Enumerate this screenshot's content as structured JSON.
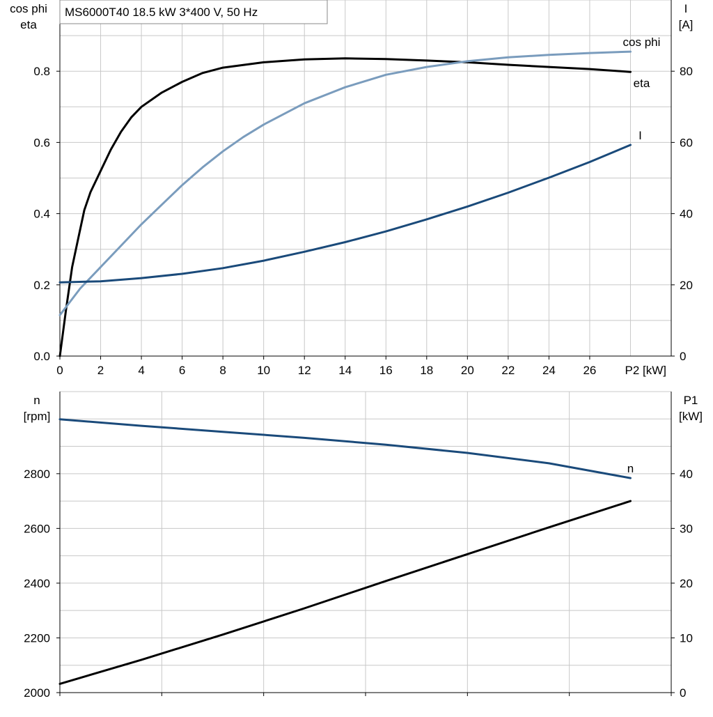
{
  "chart_data": [
    {
      "type": "line",
      "title": "MS6000T40   18.5 kW   3*400 V, 50 Hz",
      "x_axis": {
        "label": "P2 [kW]",
        "range": [
          0,
          30
        ],
        "ticks": [
          0,
          2,
          4,
          6,
          8,
          10,
          12,
          14,
          16,
          18,
          20,
          22,
          24,
          26
        ]
      },
      "y_left": {
        "label_lines": [
          "cos phi",
          "eta"
        ],
        "range": [
          0,
          1.0
        ],
        "ticks": [
          0.0,
          0.2,
          0.4,
          0.6,
          0.8
        ],
        "tick_format": 1
      },
      "y_right": {
        "label_lines": [
          "I",
          "[A]"
        ],
        "range": [
          0,
          100
        ],
        "ticks": [
          0,
          20,
          40,
          60,
          80
        ],
        "tick_format": 0
      },
      "grid": true,
      "series": [
        {
          "name": "eta",
          "axis": "left",
          "color": "#000000",
          "x": [
            0,
            0.3,
            0.6,
            0.9,
            1.2,
            1.5,
            2,
            2.5,
            3,
            3.5,
            4,
            5,
            6,
            7,
            8,
            10,
            12,
            14,
            16,
            18,
            20,
            22,
            24,
            26,
            28
          ],
          "y": [
            0.0,
            0.13,
            0.25,
            0.33,
            0.41,
            0.46,
            0.52,
            0.58,
            0.63,
            0.67,
            0.7,
            0.74,
            0.77,
            0.795,
            0.81,
            0.825,
            0.833,
            0.836,
            0.834,
            0.83,
            0.825,
            0.818,
            0.812,
            0.806,
            0.798
          ]
        },
        {
          "name": "cos phi",
          "axis": "left",
          "color": "#7a9cbd",
          "x": [
            0,
            1,
            2,
            3,
            4,
            5,
            6,
            7,
            8,
            9,
            10,
            12,
            14,
            16,
            18,
            20,
            22,
            24,
            26,
            28
          ],
          "y": [
            0.115,
            0.19,
            0.25,
            0.31,
            0.37,
            0.425,
            0.48,
            0.53,
            0.575,
            0.615,
            0.65,
            0.71,
            0.755,
            0.79,
            0.812,
            0.828,
            0.839,
            0.846,
            0.851,
            0.855
          ]
        },
        {
          "name": "I",
          "axis": "right",
          "color": "#1a4a7a",
          "x": [
            0,
            2,
            4,
            6,
            8,
            10,
            12,
            14,
            16,
            18,
            20,
            22,
            24,
            26,
            28
          ],
          "y": [
            20.7,
            21.0,
            21.9,
            23.1,
            24.7,
            26.8,
            29.3,
            32.0,
            35.0,
            38.4,
            42.0,
            45.9,
            50.1,
            54.5,
            59.3
          ]
        }
      ]
    },
    {
      "type": "line",
      "x_axis": {
        "range": [
          0,
          30
        ],
        "ticks": [
          0,
          5,
          10,
          15,
          20,
          25,
          30
        ]
      },
      "y_left": {
        "label_lines": [
          "n",
          "[rpm]"
        ],
        "range": [
          2000,
          3100
        ],
        "ticks": [
          2000,
          2200,
          2400,
          2600,
          2800
        ],
        "tick_format": 0
      },
      "y_right": {
        "label_lines": [
          "P1",
          "[kW]"
        ],
        "range": [
          0,
          55
        ],
        "ticks": [
          0,
          10,
          20,
          30,
          40
        ],
        "tick_format": 0
      },
      "grid": true,
      "series": [
        {
          "name": "n",
          "axis": "left",
          "color": "#1a4a7a",
          "x": [
            0,
            4,
            8,
            12,
            16,
            20,
            24,
            28
          ],
          "y": [
            2999,
            2975,
            2953,
            2931,
            2906,
            2876,
            2838,
            2784
          ]
        },
        {
          "axis": "right",
          "color": "#000000",
          "x": [
            0,
            4,
            8,
            12,
            16,
            20,
            24,
            28
          ],
          "y": [
            1.6,
            6.0,
            10.6,
            15.4,
            20.4,
            25.3,
            30.2,
            35.0
          ]
        }
      ]
    }
  ]
}
